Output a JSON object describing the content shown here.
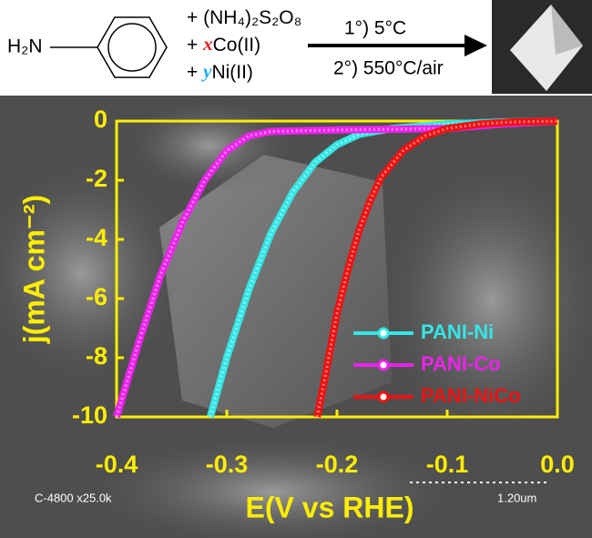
{
  "scheme": {
    "amine": "H₂N",
    "reagents": [
      {
        "prefix": "+ ",
        "text": "(NH₄)₂S₂O₈"
      },
      {
        "prefix": "+ ",
        "variable": "x",
        "text": "Co(II)"
      },
      {
        "prefix": "+ ",
        "variable": "y",
        "text": "Ni(II)"
      }
    ],
    "step1": "1°) 5°C",
    "step2": "2°) 550°C/air"
  },
  "sem_labels": {
    "instrument": "C-4800 x25.0k",
    "scale": "1.20um"
  },
  "chart_data": {
    "type": "line",
    "xlabel": "E(V vs RHE)",
    "ylabel": "j(mA cm⁻²)",
    "xlim": [
      -0.4,
      0
    ],
    "ylim": [
      -10,
      0
    ],
    "xticks": [
      -0.4,
      -0.3,
      -0.2,
      -0.1,
      {
        "value": 0,
        "label": "0.0"
      }
    ],
    "yticks": [
      0,
      -2,
      -4,
      -6,
      -8,
      -10
    ],
    "legend": "lower right",
    "series": [
      {
        "name": "PANI-Ni",
        "color": "#33e6e6",
        "x": [
          -0.315,
          -0.3,
          -0.28,
          -0.26,
          -0.24,
          -0.22,
          -0.2,
          -0.18,
          -0.15,
          -0.1,
          -0.05,
          0
        ],
        "values": [
          -10,
          -8,
          -5.7,
          -3.8,
          -2.4,
          -1.4,
          -0.8,
          -0.45,
          -0.25,
          -0.1,
          -0.03,
          0
        ]
      },
      {
        "name": "PANI-Co",
        "color": "#ee22ee",
        "x": [
          -0.4,
          -0.38,
          -0.36,
          -0.34,
          -0.32,
          -0.3,
          -0.28,
          -0.26,
          -0.2,
          -0.1,
          -0.05,
          0
        ],
        "values": [
          -10,
          -7.5,
          -5.2,
          -3.4,
          -2,
          -1,
          -0.5,
          -0.35,
          -0.3,
          -0.25,
          -0.1,
          0
        ]
      },
      {
        "name": "PANI-NiCo",
        "color": "#ee1111",
        "x": [
          -0.218,
          -0.21,
          -0.2,
          -0.19,
          -0.18,
          -0.17,
          -0.16,
          -0.14,
          -0.12,
          -0.1,
          -0.07,
          -0.04,
          0
        ],
        "values": [
          -10,
          -8.5,
          -6.5,
          -5,
          -3.7,
          -2.7,
          -1.9,
          -1,
          -0.5,
          -0.25,
          -0.1,
          -0.03,
          0
        ]
      }
    ]
  }
}
